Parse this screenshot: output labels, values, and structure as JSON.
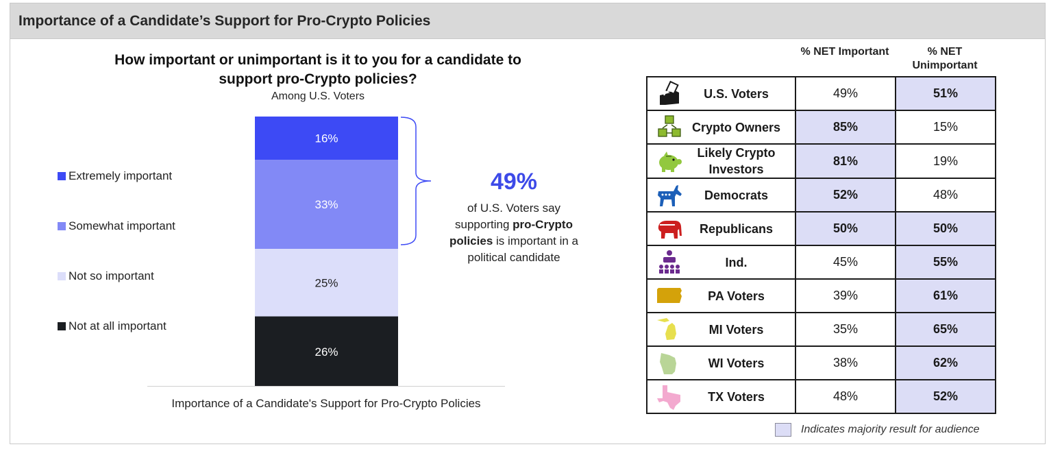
{
  "header": {
    "title": "Importance of a Candidate’s Support for Pro-Crypto Policies"
  },
  "question": {
    "line1": "How important or unimportant is it to you for a candidate to",
    "line2": "support pro-Crypto policies?",
    "subtitle": "Among U.S. Voters"
  },
  "legend": [
    {
      "label": "Extremely important",
      "color": "#3d4af5"
    },
    {
      "label": "Somewhat important",
      "color": "#8289f6"
    },
    {
      "label": "Not so important",
      "color": "#dcdefa"
    },
    {
      "label": "Not at all important",
      "color": "#1b1e22"
    }
  ],
  "chart_data": {
    "type": "bar",
    "stacked": true,
    "title": "How important or unimportant is it to you for a candidate to support pro-Crypto policies?",
    "subtitle": "Among U.S. Voters",
    "xlabel": "Importance of a Candidate's Support for Pro-Crypto Policies",
    "categories": [
      "Importance of a Candidate's Support for Pro-Crypto Policies"
    ],
    "series": [
      {
        "name": "Extremely important",
        "values": [
          16
        ],
        "label": "16%",
        "color": "#3d4af5",
        "label_color": "#ffffff"
      },
      {
        "name": "Somewhat important",
        "values": [
          33
        ],
        "label": "33%",
        "color": "#8289f6",
        "label_color": "#ffffff"
      },
      {
        "name": "Not so important",
        "values": [
          25
        ],
        "label": "25%",
        "color": "#dcdefa",
        "label_color": "#222222"
      },
      {
        "name": "Not at all important",
        "values": [
          26
        ],
        "label": "26%",
        "color": "#1b1e22",
        "label_color": "#ffffff"
      }
    ],
    "ylim": [
      0,
      100
    ],
    "legend_position": "left",
    "grid": false
  },
  "caption": "Importance of a Candidate's Support for Pro-Crypto Policies",
  "callout": {
    "value": "49%",
    "text_before": "of U.S. Voters say supporting ",
    "text_bold": "pro-Crypto policies",
    "text_after": " is important in a political candidate",
    "color": "#3d4ae8"
  },
  "table": {
    "headers": {
      "important": "% NET Important",
      "unimportant": "% NET Unimportant"
    },
    "rows": [
      {
        "audience": "U.S. Voters",
        "icon": "ballot-box-icon",
        "important": "49%",
        "unimportant": "51%",
        "majority": "unimportant"
      },
      {
        "audience": "Crypto Owners",
        "icon": "blockchain-cubes-icon",
        "important": "85%",
        "unimportant": "15%",
        "majority": "important"
      },
      {
        "audience": "Likely Crypto Investors",
        "icon": "piggy-bank-icon",
        "important": "81%",
        "unimportant": "19%",
        "majority": "important"
      },
      {
        "audience": "Democrats",
        "icon": "donkey-icon",
        "important": "52%",
        "unimportant": "48%",
        "majority": "important"
      },
      {
        "audience": "Republicans",
        "icon": "elephant-icon",
        "important": "50%",
        "unimportant": "50%",
        "majority": "both"
      },
      {
        "audience": "Ind.",
        "icon": "independent-group-icon",
        "important": "45%",
        "unimportant": "55%",
        "majority": "unimportant"
      },
      {
        "audience": "PA Voters",
        "icon": "pennsylvania-map-icon",
        "important": "39%",
        "unimportant": "61%",
        "majority": "unimportant"
      },
      {
        "audience": "MI Voters",
        "icon": "michigan-map-icon",
        "important": "35%",
        "unimportant": "65%",
        "majority": "unimportant"
      },
      {
        "audience": "WI Voters",
        "icon": "wisconsin-map-icon",
        "important": "38%",
        "unimportant": "62%",
        "majority": "unimportant"
      },
      {
        "audience": "TX Voters",
        "icon": "texas-map-icon",
        "important": "48%",
        "unimportant": "52%",
        "majority": "unimportant"
      }
    ],
    "highlight_color": "#dcddf6"
  },
  "note": {
    "text": "Indicates majority result for audience"
  }
}
